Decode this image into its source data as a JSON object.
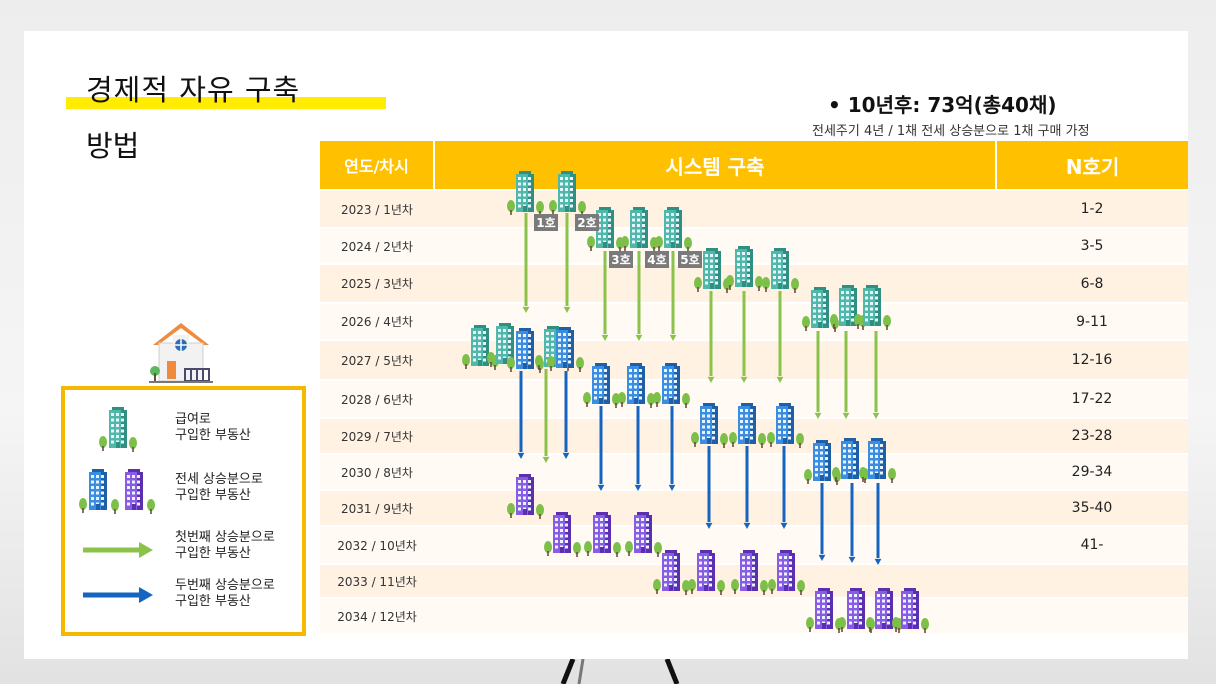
{
  "heading": {
    "title": "경제적 자유 구축",
    "subtitle": "방법"
  },
  "summary": {
    "bullet": "• 10년후: 73억(총40채)",
    "note": "전세주기 4년 / 1채 전세 상승분으로 1채 구매 가정"
  },
  "table": {
    "headers": [
      "연도/차시",
      "시스템 구축",
      "N호기"
    ],
    "rows": [
      {
        "year": "2023 / 1년차",
        "n": "1-2"
      },
      {
        "year": "2024 / 2년차",
        "n": "3-5"
      },
      {
        "year": "2025 / 3년차",
        "n": "6-8"
      },
      {
        "year": "2026 / 4년차",
        "n": "9-11"
      },
      {
        "year": "2027 / 5년차",
        "n": "12-16"
      },
      {
        "year": "2028 / 6년차",
        "n": "17-22"
      },
      {
        "year": "2029 / 7년차",
        "n": "23-28"
      },
      {
        "year": "2030 / 8년차",
        "n": "29-34"
      },
      {
        "year": "2031 / 9년차",
        "n": "35-40"
      },
      {
        "year": "2032 / 10년차",
        "n": "41-"
      },
      {
        "year": "2033 / 11년차",
        "n": ""
      },
      {
        "year": "2034 / 12년차",
        "n": ""
      }
    ],
    "unit_labels": [
      "1호",
      "2호",
      "3호",
      "4호",
      "5호"
    ]
  },
  "legend": {
    "items": [
      {
        "label": "급여로\n구입한 부동산",
        "icon": "teal-building-icon"
      },
      {
        "label": "전세 상승분으로\n구입한 부동산",
        "icon": "blue-purple-building-icon"
      },
      {
        "label": "첫번째 상승분으로\n구입한 부동산",
        "icon": "green-arrow-icon"
      },
      {
        "label": "두번째 상승분으로\n구입한 부동산",
        "icon": "blue-arrow-icon"
      }
    ]
  },
  "colors": {
    "header": "#ffc000",
    "row_light": "#fff2e3",
    "row_white": "#fffaf4",
    "teal": "#4fb8a8",
    "blue": "#2a7fd2",
    "purple": "#7b4fd8",
    "green_arrow": "#8bc34a",
    "blue_arrow": "#1565c0",
    "legend_border": "#f5b700"
  }
}
